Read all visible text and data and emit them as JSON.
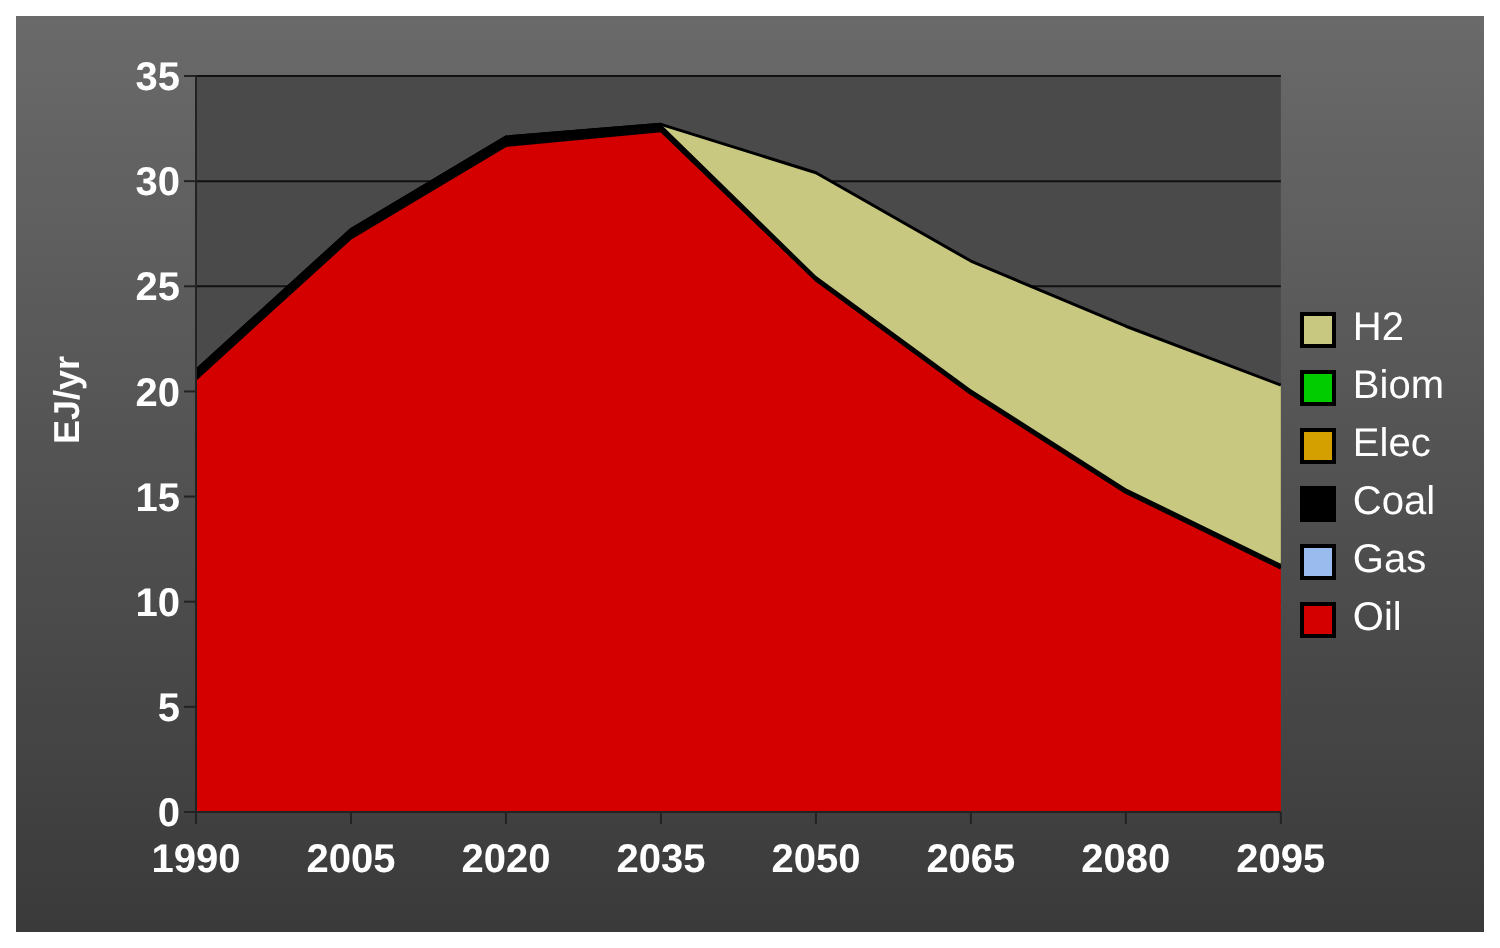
{
  "chart_data": {
    "type": "area",
    "stacked": true,
    "ylabel": "EJ/yr",
    "categories": [
      "1990",
      "2005",
      "2020",
      "2035",
      "2050",
      "2065",
      "2080",
      "2095"
    ],
    "series": [
      {
        "name": "Oil",
        "color": "#d40000",
        "values": [
          20.6,
          27.3,
          31.7,
          32.4,
          25.3,
          19.9,
          15.2,
          11.6
        ]
      },
      {
        "name": "Gas",
        "color": "#99bbee",
        "values": [
          null,
          null,
          null,
          null,
          null,
          null,
          null,
          null
        ]
      },
      {
        "name": "Coal",
        "color": "#000000",
        "values": [
          0.4,
          0.4,
          0.4,
          0.3,
          0.2,
          0.2,
          0.2,
          0.2
        ]
      },
      {
        "name": "Elec",
        "color": "#d4a000",
        "values": [
          null,
          null,
          null,
          null,
          null,
          null,
          null,
          null
        ]
      },
      {
        "name": "Biom",
        "color": "#00cc00",
        "values": [
          null,
          null,
          null,
          null,
          null,
          null,
          null,
          null
        ]
      },
      {
        "name": "H2",
        "color": "#c8c880",
        "values": [
          0,
          0,
          0,
          0,
          4.9,
          6.1,
          7.7,
          8.5
        ]
      }
    ],
    "ylim": [
      0,
      35
    ],
    "yticks": [
      0,
      5,
      10,
      15,
      20,
      25,
      30,
      35
    ],
    "grid": "y",
    "legend": "right"
  }
}
